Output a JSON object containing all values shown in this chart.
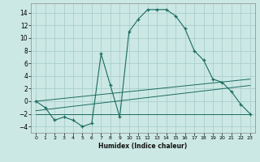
{
  "xlabel": "Humidex (Indice chaleur)",
  "background_color": "#cce8e4",
  "grid_color": "#aacfcb",
  "line_color": "#1a6b60",
  "xlim": [
    -0.5,
    23.5
  ],
  "ylim": [
    -5,
    15.5
  ],
  "xticks": [
    0,
    1,
    2,
    3,
    4,
    5,
    6,
    7,
    8,
    9,
    10,
    11,
    12,
    13,
    14,
    15,
    16,
    17,
    18,
    19,
    20,
    21,
    22,
    23
  ],
  "yticks": [
    -4,
    -2,
    0,
    2,
    4,
    6,
    8,
    10,
    12,
    14
  ],
  "main_line": {
    "x": [
      0,
      1,
      2,
      3,
      4,
      5,
      6,
      7,
      8,
      9,
      10,
      11,
      12,
      13,
      14,
      15,
      16,
      17,
      18,
      19,
      20,
      21,
      22,
      23
    ],
    "y": [
      0,
      -1,
      -3,
      -2.5,
      -3,
      -4,
      -3.5,
      7.5,
      2.5,
      -2.5,
      11,
      13,
      14.5,
      14.5,
      14.5,
      13.5,
      11.5,
      8,
      6.5,
      3.5,
      3,
      1.5,
      -0.5,
      -2
    ]
  },
  "ref_lines": [
    {
      "x": [
        0,
        23
      ],
      "y": [
        -2,
        -2
      ]
    },
    {
      "x": [
        0,
        23
      ],
      "y": [
        0,
        3.5
      ]
    },
    {
      "x": [
        0,
        23
      ],
      "y": [
        -1.5,
        2.5
      ]
    }
  ]
}
